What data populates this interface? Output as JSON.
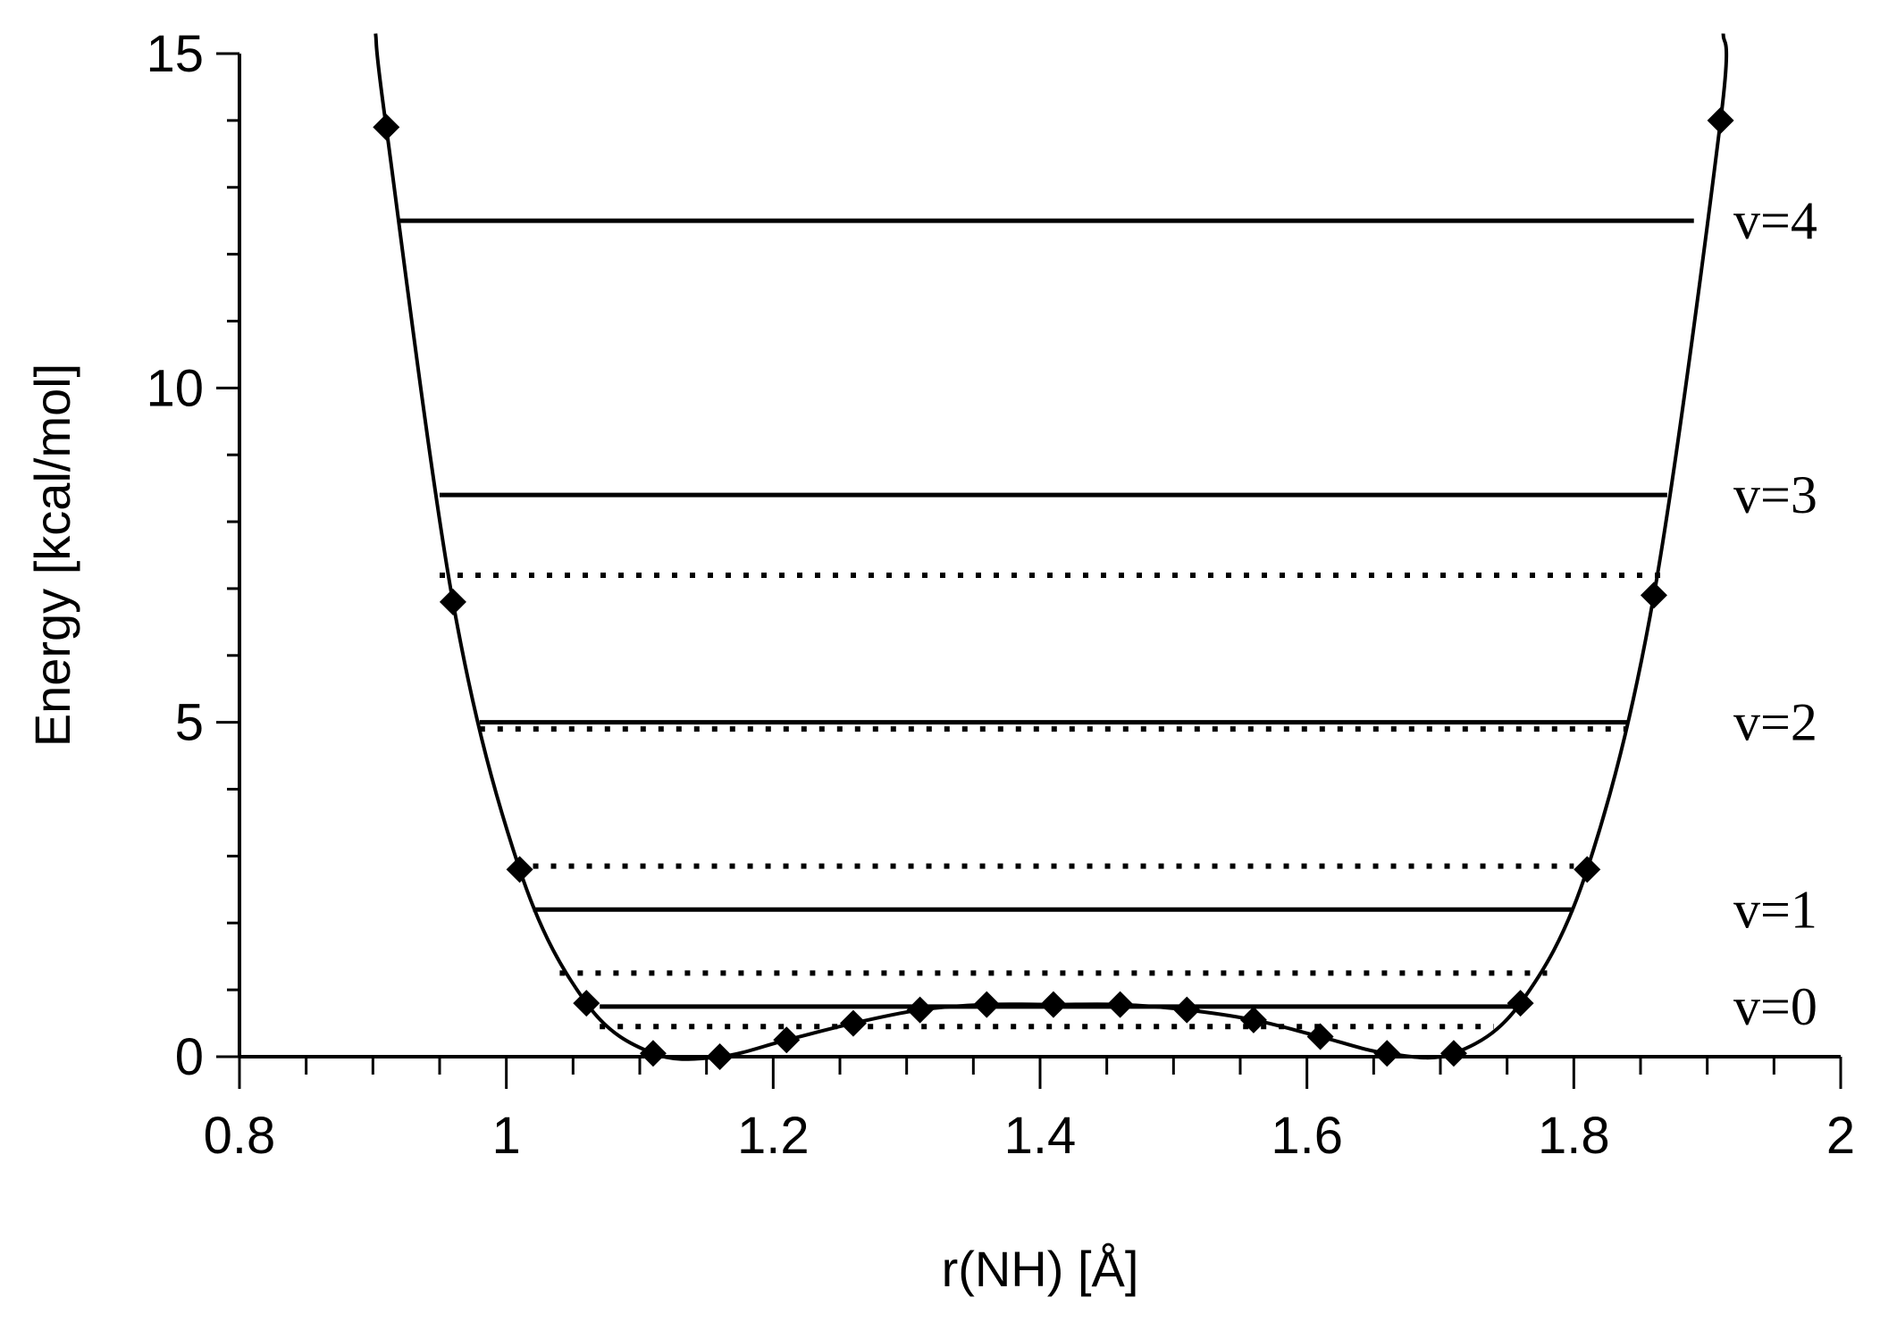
{
  "chart_data": {
    "type": "line",
    "title": "",
    "xlabel": "r(NH) [Å]",
    "ylabel": "Energy [kcal/mol]",
    "xlim": [
      0.8,
      2.0
    ],
    "ylim": [
      0,
      15
    ],
    "x_ticks": [
      0.8,
      1.0,
      1.2,
      1.4,
      1.6,
      1.8,
      2.0
    ],
    "x_tick_labels": [
      "0.8",
      "1",
      "1.2",
      "1.4",
      "1.6",
      "1.8",
      "2"
    ],
    "y_ticks": [
      0,
      5,
      10,
      15
    ],
    "y_tick_labels": [
      "0",
      "5",
      "10",
      "15"
    ],
    "grid": false,
    "series": [
      {
        "style": "line-with-diamond-markers",
        "color": "#000000",
        "x": [
          0.91,
          0.96,
          1.01,
          1.06,
          1.11,
          1.16,
          1.21,
          1.26,
          1.31,
          1.36,
          1.41,
          1.46,
          1.51,
          1.56,
          1.61,
          1.66,
          1.71,
          1.76,
          1.81,
          1.86,
          1.91
        ],
        "y": [
          13.9,
          6.8,
          2.8,
          0.8,
          0.05,
          0.0,
          0.25,
          0.5,
          0.7,
          0.78,
          0.78,
          0.78,
          0.7,
          0.55,
          0.3,
          0.05,
          0.05,
          0.8,
          2.8,
          6.9,
          14.0
        ]
      }
    ],
    "levels": [
      {
        "label": "v=4",
        "energy": 12.5,
        "x_from": 0.92,
        "x_to": 1.89,
        "style": "solid"
      },
      {
        "label": "v=3",
        "energy": 8.4,
        "x_from": 0.95,
        "x_to": 1.87,
        "style": "solid"
      },
      {
        "label": "",
        "energy": 7.2,
        "x_from": 0.95,
        "x_to": 1.87,
        "style": "dotted"
      },
      {
        "label": "v=2",
        "energy": 5.0,
        "x_from": 0.98,
        "x_to": 1.84,
        "style": "solid"
      },
      {
        "label": "",
        "energy": 4.9,
        "x_from": 0.98,
        "x_to": 1.84,
        "style": "dotted"
      },
      {
        "label": "",
        "energy": 2.85,
        "x_from": 1.02,
        "x_to": 1.8,
        "style": "dotted"
      },
      {
        "label": "v=1",
        "energy": 2.2,
        "x_from": 1.02,
        "x_to": 1.8,
        "style": "solid"
      },
      {
        "label": "",
        "energy": 1.25,
        "x_from": 1.04,
        "x_to": 1.78,
        "style": "dotted"
      },
      {
        "label": "v=0",
        "energy": 0.75,
        "x_from": 1.07,
        "x_to": 1.76,
        "style": "solid"
      },
      {
        "label": "",
        "energy": 0.45,
        "x_from": 1.07,
        "x_to": 1.74,
        "style": "dotted"
      }
    ]
  }
}
